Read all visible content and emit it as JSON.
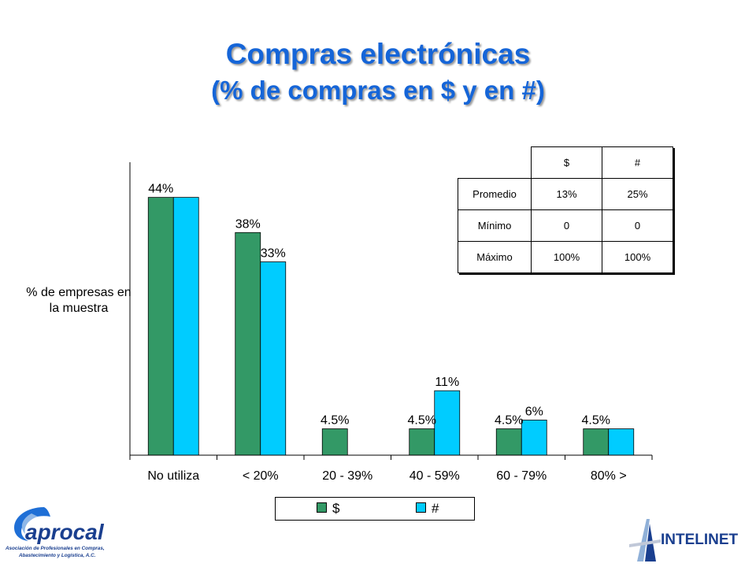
{
  "title": "Compras electrónicas",
  "subtitle": "(% de compras en $ y en #)",
  "chart_data": {
    "type": "bar",
    "categories": [
      "No utiliza",
      "< 20%",
      "20 - 39%",
      "40 - 59%",
      "60 - 79%",
      "80% >"
    ],
    "series": [
      {
        "name": "$",
        "values": [
          44,
          38,
          4.5,
          4.5,
          4.5,
          4.5
        ],
        "labels": [
          "44%",
          "38%",
          "4.5%",
          "4.5%",
          "4.5%",
          "4.5%"
        ],
        "color": "#339966"
      },
      {
        "name": "#",
        "values": [
          44,
          33,
          0,
          11,
          6,
          4.5
        ],
        "labels": [
          "",
          "33%",
          "",
          "11%",
          "6%",
          ""
        ],
        "color": "#00CCFF"
      }
    ],
    "ylabel": "% de empresas en la muestra",
    "ylim": [
      0,
      50
    ],
    "grid": false,
    "legend_position": "bottom"
  },
  "stats_table": {
    "headers": [
      "",
      "$",
      "#"
    ],
    "rows": [
      [
        "Promedio",
        "13%",
        "25%"
      ],
      [
        "Mínimo",
        "0",
        "0"
      ],
      [
        "Máximo",
        "100%",
        "100%"
      ]
    ]
  },
  "logos": {
    "left_name": "aprocal",
    "left_caption_1": "Asociación de Profesionales en Compras,",
    "left_caption_2": "Abastecimiento y Logística, A.C.",
    "right_name": "INTELINET"
  },
  "colors": {
    "title": "#1565D8",
    "bar_dollar": "#339966",
    "bar_count": "#00CCFF"
  }
}
